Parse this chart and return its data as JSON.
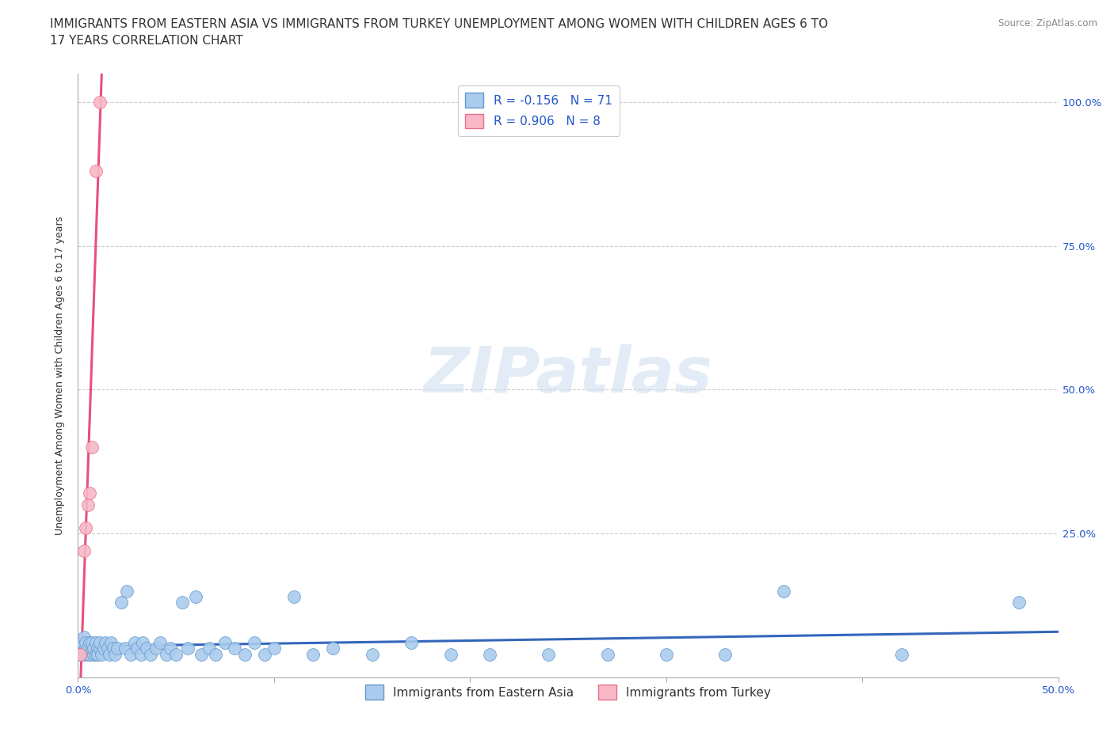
{
  "title_line1": "IMMIGRANTS FROM EASTERN ASIA VS IMMIGRANTS FROM TURKEY UNEMPLOYMENT AMONG WOMEN WITH CHILDREN AGES 6 TO",
  "title_line2": "17 YEARS CORRELATION CHART",
  "source_text": "Source: ZipAtlas.com",
  "ylabel": "Unemployment Among Women with Children Ages 6 to 17 years",
  "background_color": "#ffffff",
  "plot_bg_color": "#ffffff",
  "watermark": "ZIPatlas",
  "series": [
    {
      "name": "Immigrants from Eastern Asia",
      "color": "#aaccee",
      "edge_color": "#6699cc",
      "line_color": "#3366bb",
      "R": -0.156,
      "N": 71,
      "x": [
        0.001,
        0.002,
        0.002,
        0.003,
        0.003,
        0.004,
        0.004,
        0.005,
        0.005,
        0.006,
        0.006,
        0.007,
        0.007,
        0.008,
        0.008,
        0.009,
        0.009,
        0.01,
        0.01,
        0.011,
        0.011,
        0.012,
        0.013,
        0.014,
        0.015,
        0.016,
        0.017,
        0.018,
        0.019,
        0.02,
        0.022,
        0.024,
        0.025,
        0.027,
        0.029,
        0.03,
        0.032,
        0.033,
        0.035,
        0.037,
        0.04,
        0.042,
        0.045,
        0.047,
        0.05,
        0.053,
        0.056,
        0.06,
        0.063,
        0.067,
        0.07,
        0.075,
        0.08,
        0.085,
        0.09,
        0.095,
        0.1,
        0.11,
        0.12,
        0.13,
        0.15,
        0.17,
        0.19,
        0.21,
        0.24,
        0.27,
        0.3,
        0.33,
        0.36,
        0.42,
        0.48
      ],
      "y": [
        0.04,
        0.05,
        0.06,
        0.04,
        0.07,
        0.05,
        0.06,
        0.04,
        0.05,
        0.06,
        0.04,
        0.05,
        0.06,
        0.04,
        0.05,
        0.04,
        0.06,
        0.05,
        0.04,
        0.05,
        0.06,
        0.04,
        0.05,
        0.06,
        0.05,
        0.04,
        0.06,
        0.05,
        0.04,
        0.05,
        0.13,
        0.05,
        0.15,
        0.04,
        0.06,
        0.05,
        0.04,
        0.06,
        0.05,
        0.04,
        0.05,
        0.06,
        0.04,
        0.05,
        0.04,
        0.13,
        0.05,
        0.14,
        0.04,
        0.05,
        0.04,
        0.06,
        0.05,
        0.04,
        0.06,
        0.04,
        0.05,
        0.14,
        0.04,
        0.05,
        0.04,
        0.06,
        0.04,
        0.04,
        0.04,
        0.04,
        0.04,
        0.04,
        0.15,
        0.04,
        0.13
      ]
    },
    {
      "name": "Immigrants from Turkey",
      "color": "#f8b8c8",
      "edge_color": "#e8708a",
      "line_color": "#e8507a",
      "R": 0.906,
      "N": 8,
      "x": [
        0.001,
        0.003,
        0.004,
        0.005,
        0.006,
        0.007,
        0.009,
        0.011
      ],
      "y": [
        0.04,
        0.22,
        0.26,
        0.3,
        0.32,
        0.4,
        0.88,
        1.0
      ]
    }
  ],
  "xlim": [
    0.0,
    0.5
  ],
  "ylim": [
    0.0,
    1.05
  ],
  "yticks": [
    0.0,
    0.25,
    0.5,
    0.75,
    1.0
  ],
  "ytick_right_labels": [
    "",
    "25.0%",
    "50.0%",
    "75.0%",
    "100.0%"
  ],
  "xtick_left_label": "0.0%",
  "xtick_right_label": "50.0%",
  "grid_color": "#cccccc",
  "grid_style": "--",
  "title_fontsize": 11,
  "axis_label_fontsize": 9,
  "tick_fontsize": 9.5,
  "legend_fontsize": 11
}
